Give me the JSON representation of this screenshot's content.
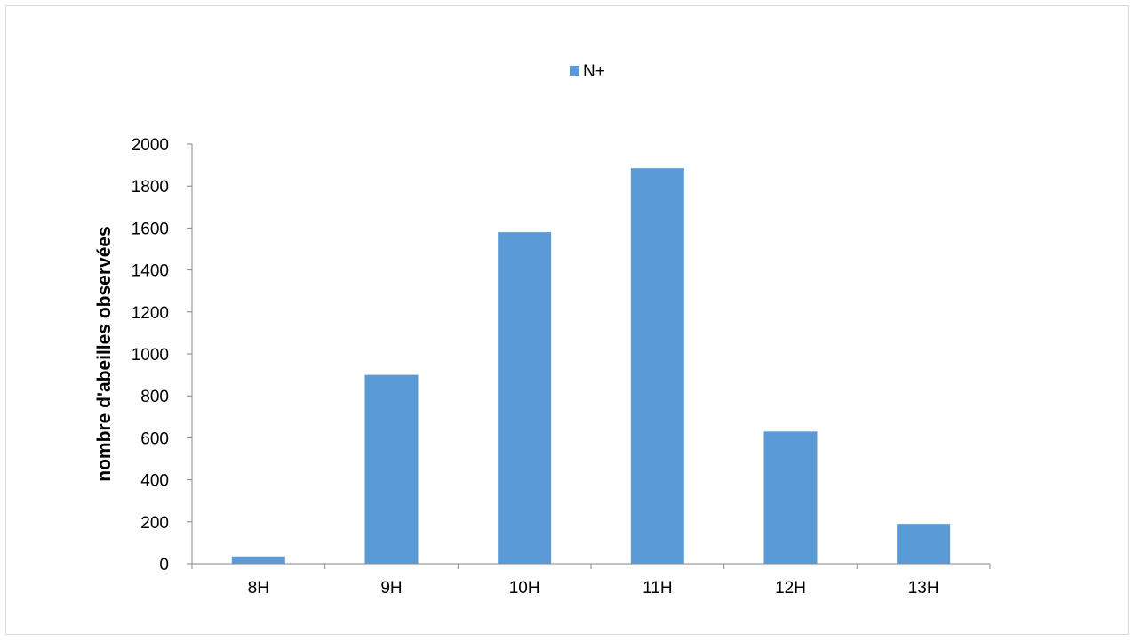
{
  "chart_data": {
    "type": "bar",
    "categories": [
      "8H",
      "9H",
      "10H",
      "11H",
      "12H",
      "13H"
    ],
    "series": [
      {
        "name": "N+",
        "values": [
          35,
          900,
          1580,
          1885,
          630,
          190
        ],
        "color": "#5b9bd5"
      }
    ],
    "title": "",
    "xlabel": "",
    "ylabel": "nombre d'abeilles observées",
    "ylim": [
      0,
      2000
    ],
    "yticks": [
      0,
      200,
      400,
      600,
      800,
      1000,
      1200,
      1400,
      1600,
      1800,
      2000
    ],
    "grid": false,
    "legend_position": "top-center",
    "axis_color": "#868686"
  }
}
